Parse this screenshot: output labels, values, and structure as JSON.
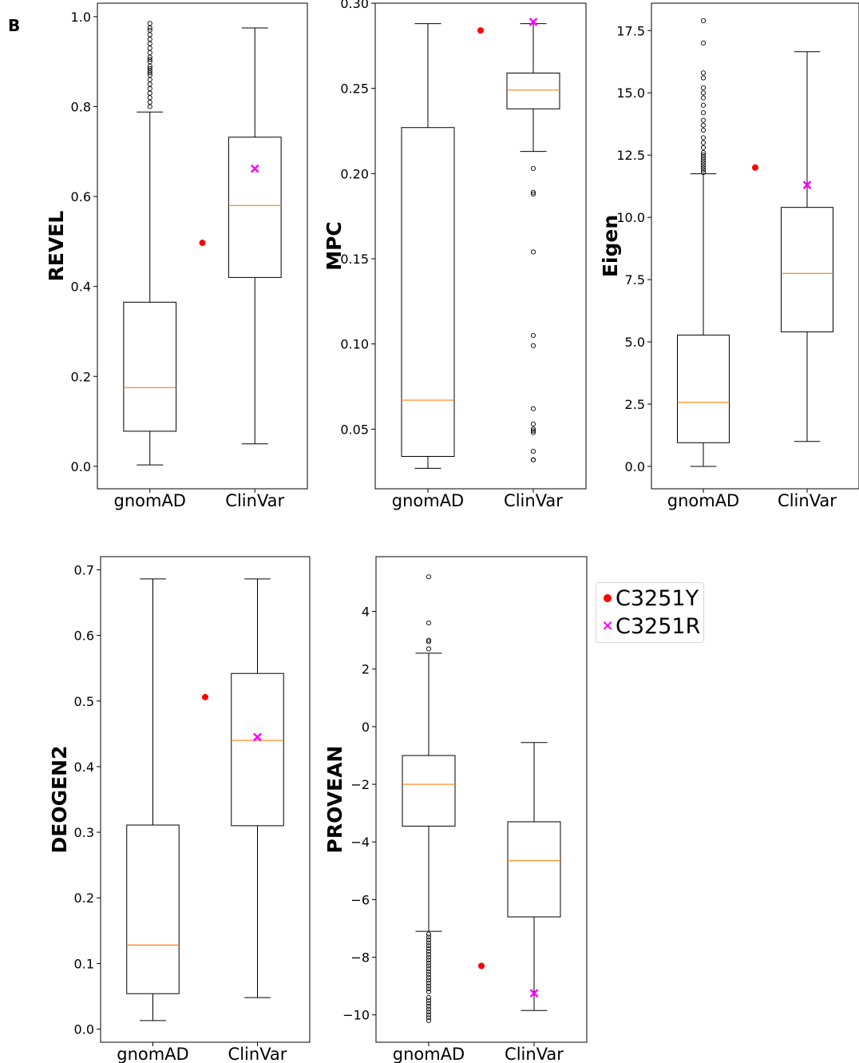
{
  "panel_label": "B",
  "legend": {
    "entries": [
      {
        "label": "C3251Y",
        "marker": "dot",
        "color": "#ff0000"
      },
      {
        "label": "C3251R",
        "marker": "x",
        "color": "#ff00ff"
      }
    ]
  },
  "colors": {
    "median": "#ff7f0e",
    "box": "#000000",
    "c3251y": "#ff0000",
    "c3251r": "#ff00ff"
  },
  "chart_data": [
    {
      "type": "box",
      "ylabel": "REVEL",
      "categories": [
        "gnomAD",
        "ClinVar"
      ],
      "ylim": [
        -0.05,
        1.03
      ],
      "yticks": [
        0.0,
        0.2,
        0.4,
        0.6,
        0.8,
        1.0
      ],
      "ytick_labels": [
        "0.0",
        "0.2",
        "0.4",
        "0.6",
        "0.8",
        "1.0"
      ],
      "boxes": [
        {
          "name": "gnomAD",
          "whislo": 0.003,
          "q1": 0.078,
          "med": 0.175,
          "q3": 0.365,
          "whishi": 0.788,
          "fliers": [
            0.8,
            0.81,
            0.82,
            0.83,
            0.84,
            0.85,
            0.86,
            0.87,
            0.875,
            0.88,
            0.885,
            0.89,
            0.9,
            0.905,
            0.91,
            0.92,
            0.93,
            0.94,
            0.95,
            0.96,
            0.97,
            0.975,
            0.985
          ]
        },
        {
          "name": "ClinVar",
          "whislo": 0.05,
          "q1": 0.42,
          "med": 0.58,
          "q3": 0.732,
          "whishi": 0.975,
          "fliers": []
        }
      ],
      "points": [
        {
          "label": "C3251Y",
          "marker": "dot",
          "x": 1.5,
          "y": 0.497
        },
        {
          "label": "C3251R",
          "marker": "x",
          "x": 2.0,
          "y": 0.662
        }
      ]
    },
    {
      "type": "box",
      "ylabel": "MPC",
      "categories": [
        "gnomAD",
        "ClinVar"
      ],
      "ylim": [
        0.015,
        0.3
      ],
      "yticks": [
        0.05,
        0.1,
        0.15,
        0.2,
        0.25,
        0.3
      ],
      "ytick_labels": [
        "0.05",
        "0.10",
        "0.15",
        "0.20",
        "0.25",
        "0.30"
      ],
      "boxes": [
        {
          "name": "gnomAD",
          "whislo": 0.027,
          "q1": 0.034,
          "med": 0.067,
          "q3": 0.227,
          "whishi": 0.288,
          "fliers": []
        },
        {
          "name": "ClinVar",
          "whislo": 0.213,
          "q1": 0.238,
          "med": 0.249,
          "q3": 0.259,
          "whishi": 0.288,
          "fliers": [
            0.203,
            0.189,
            0.188,
            0.154,
            0.105,
            0.099,
            0.062,
            0.053,
            0.05,
            0.049,
            0.048,
            0.037,
            0.032,
            0.032
          ]
        }
      ],
      "points": [
        {
          "label": "C3251Y",
          "marker": "dot",
          "x": 1.5,
          "y": 0.284
        },
        {
          "label": "C3251R",
          "marker": "x",
          "x": 2.0,
          "y": 0.289
        }
      ]
    },
    {
      "type": "box",
      "ylabel": "Eigen",
      "categories": [
        "gnomAD",
        "ClinVar"
      ],
      "ylim": [
        -0.9,
        18.6
      ],
      "yticks": [
        0.0,
        2.5,
        5.0,
        7.5,
        10.0,
        12.5,
        15.0,
        17.5
      ],
      "ytick_labels": [
        "0.0",
        "2.5",
        "5.0",
        "7.5",
        "10.0",
        "12.5",
        "15.0",
        "17.5"
      ],
      "boxes": [
        {
          "name": "gnomAD",
          "whislo": 0.0,
          "q1": 0.95,
          "med": 2.57,
          "q3": 5.27,
          "whishi": 11.75,
          "fliers": [
            11.8,
            11.9,
            12.0,
            12.1,
            12.2,
            12.3,
            12.4,
            12.5,
            12.6,
            12.8,
            13.0,
            13.2,
            13.5,
            13.7,
            13.9,
            14.2,
            14.5,
            14.8,
            15.0,
            15.2,
            15.6,
            15.8,
            17.0,
            17.9
          ]
        },
        {
          "name": "ClinVar",
          "whislo": 1.0,
          "q1": 5.4,
          "med": 7.75,
          "q3": 10.4,
          "whishi": 16.65,
          "fliers": []
        }
      ],
      "points": [
        {
          "label": "C3251Y",
          "marker": "dot",
          "x": 1.5,
          "y": 12.0
        },
        {
          "label": "C3251R",
          "marker": "x",
          "x": 2.0,
          "y": 11.3
        }
      ]
    },
    {
      "type": "box",
      "ylabel": "DEOGEN2",
      "categories": [
        "gnomAD",
        "ClinVar"
      ],
      "ylim": [
        -0.02,
        0.72
      ],
      "yticks": [
        0.0,
        0.1,
        0.2,
        0.3,
        0.4,
        0.5,
        0.6,
        0.7
      ],
      "ytick_labels": [
        "0.0",
        "0.1",
        "0.2",
        "0.3",
        "0.4",
        "0.5",
        "0.6",
        "0.7"
      ],
      "boxes": [
        {
          "name": "gnomAD",
          "whislo": 0.013,
          "q1": 0.054,
          "med": 0.128,
          "q3": 0.311,
          "whishi": 0.686,
          "fliers": []
        },
        {
          "name": "ClinVar",
          "whislo": 0.048,
          "q1": 0.31,
          "med": 0.44,
          "q3": 0.542,
          "whishi": 0.686,
          "fliers": []
        }
      ],
      "points": [
        {
          "label": "C3251Y",
          "marker": "dot",
          "x": 1.5,
          "y": 0.506
        },
        {
          "label": "C3251R",
          "marker": "x",
          "x": 2.0,
          "y": 0.445
        }
      ]
    },
    {
      "type": "box",
      "ylabel": "PROVEAN",
      "categories": [
        "gnomAD",
        "ClinVar"
      ],
      "ylim": [
        -10.95,
        5.9
      ],
      "yticks": [
        -10,
        -8,
        -6,
        -4,
        -2,
        0,
        2,
        4
      ],
      "ytick_labels": [
        "−10",
        "−8",
        "−6",
        "−4",
        "−2",
        "0",
        "2",
        "4"
      ],
      "boxes": [
        {
          "name": "gnomAD",
          "whislo": -7.1,
          "q1": -3.45,
          "med": -2.0,
          "q3": -1.0,
          "whishi": 2.55,
          "fliers": [
            5.2,
            3.6,
            3.0,
            2.95,
            2.7,
            -7.2,
            -7.3,
            -7.4,
            -7.5,
            -7.6,
            -7.7,
            -7.8,
            -7.9,
            -8.0,
            -8.1,
            -8.2,
            -8.3,
            -8.4,
            -8.5,
            -8.6,
            -8.7,
            -8.8,
            -8.9,
            -9.0,
            -9.1,
            -9.2,
            -9.4,
            -9.5,
            -9.6,
            -9.7,
            -9.8,
            -9.9,
            -10.0,
            -10.1,
            -10.2
          ]
        },
        {
          "name": "ClinVar",
          "whislo": -9.85,
          "q1": -6.6,
          "med": -4.65,
          "q3": -3.3,
          "whishi": -0.55,
          "fliers": []
        }
      ],
      "points": [
        {
          "label": "C3251Y",
          "marker": "dot",
          "x": 1.5,
          "y": -8.3
        },
        {
          "label": "C3251R",
          "marker": "x",
          "x": 2.0,
          "y": -9.25
        }
      ]
    }
  ]
}
